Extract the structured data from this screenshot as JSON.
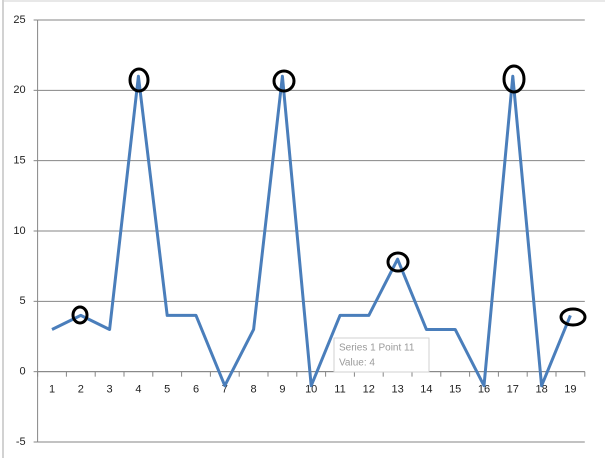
{
  "chart_data": {
    "type": "line",
    "categories": [
      "1",
      "2",
      "3",
      "4",
      "5",
      "6",
      "7",
      "8",
      "9",
      "10",
      "11",
      "12",
      "13",
      "14",
      "15",
      "16",
      "17",
      "18",
      "19"
    ],
    "series": [
      {
        "name": "Series 1",
        "color": "#4a7ebb",
        "values": [
          3,
          4,
          3,
          21,
          4,
          4,
          -1,
          3,
          21,
          -1,
          4,
          4,
          8,
          3,
          3,
          -1,
          21,
          -1,
          4
        ]
      }
    ],
    "ylim": [
      -5,
      25
    ],
    "yticks": [
      -5,
      0,
      5,
      10,
      15,
      20,
      25
    ],
    "grid": true,
    "tooltip": [
      "Series 1 Point 11",
      "Value: 4"
    ]
  }
}
